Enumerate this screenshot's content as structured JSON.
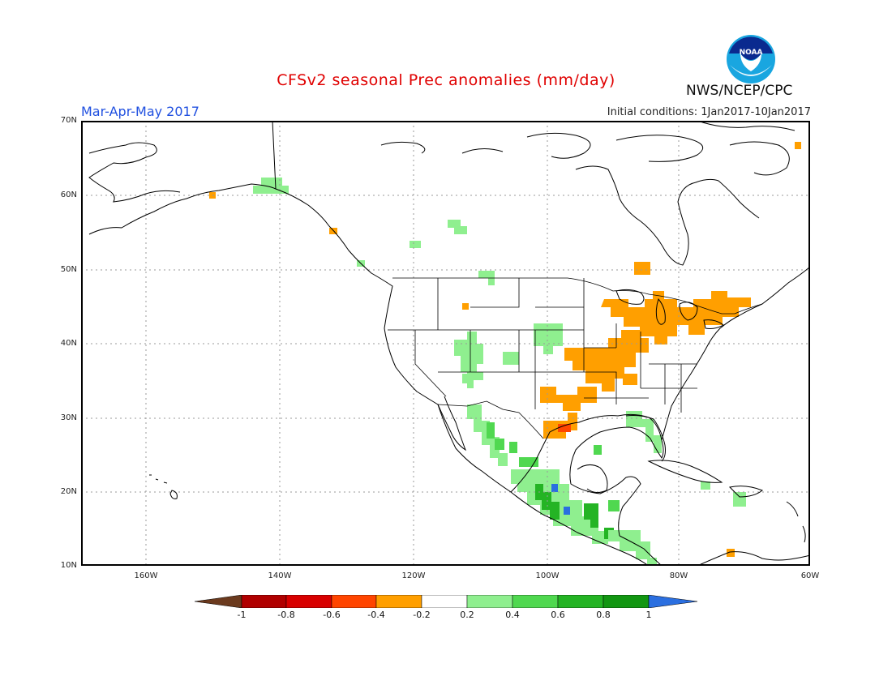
{
  "title": "CFSv2 seasonal Prec anomalies (mm/day)",
  "season": "Mar-Apr-May 2017",
  "initial_conditions": "Initial conditions: 1Jan2017-10Jan2017",
  "agency": "NWS/NCEP/CPC",
  "logo_text": "NOAA",
  "logo_icon": "noaa-logo-icon",
  "lat_labels": [
    "70N",
    "60N",
    "50N",
    "40N",
    "30N",
    "20N",
    "10N"
  ],
  "lon_labels": [
    "160W",
    "140W",
    "120W",
    "100W",
    "80W",
    "60W"
  ],
  "colorbar": {
    "labels": [
      "-1",
      "-0.8",
      "-0.6",
      "-0.4",
      "-0.2",
      "0.2",
      "0.4",
      "0.6",
      "0.8",
      "1"
    ],
    "colors": [
      "#6b3a1e",
      "#b00000",
      "#d80000",
      "#ff4500",
      "#ff9f00",
      "#ffffff",
      "#8fef8f",
      "#50d850",
      "#24b424",
      "#129612",
      "#2b6fe0"
    ]
  },
  "colors": {
    "title": "#e00000",
    "season": "#2050e0",
    "dry_light": "#ff9f00",
    "dry_moderate": "#ff4500",
    "dry_strong": "#d80000",
    "wet_light": "#8fef8f",
    "wet_moderate": "#50d850",
    "wet_strong": "#24b424",
    "wet_very_strong": "#2b6fe0"
  }
}
